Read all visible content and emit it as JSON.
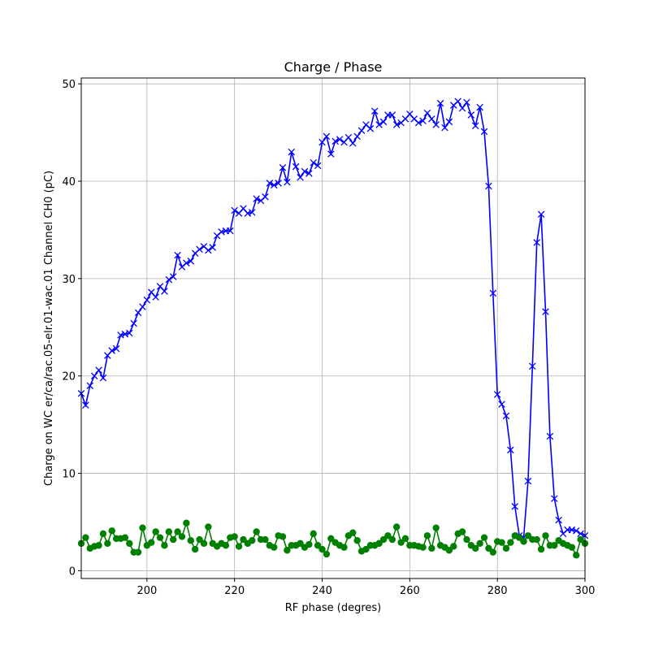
{
  "chart_data": {
    "type": "line",
    "title": "Charge / Phase",
    "x_label": "RF phase (degres)",
    "y_label": "Charge on WC er/ca/rac.05-elr.01-wac.01 Channel CH0 (pC)",
    "x": [
      185,
      186,
      187,
      188,
      189,
      190,
      191,
      192,
      193,
      194,
      195,
      196,
      197,
      198,
      199,
      200,
      201,
      202,
      203,
      204,
      205,
      206,
      207,
      208,
      209,
      210,
      211,
      212,
      213,
      214,
      215,
      216,
      217,
      218,
      219,
      220,
      221,
      222,
      223,
      224,
      225,
      226,
      227,
      228,
      229,
      230,
      231,
      232,
      233,
      234,
      235,
      236,
      237,
      238,
      239,
      240,
      241,
      242,
      243,
      244,
      245,
      246,
      247,
      248,
      249,
      250,
      251,
      252,
      253,
      254,
      255,
      256,
      257,
      258,
      259,
      260,
      261,
      262,
      263,
      264,
      265,
      266,
      267,
      268,
      269,
      270,
      271,
      272,
      273,
      274,
      275,
      276,
      277,
      278,
      279,
      280,
      281,
      282,
      283,
      284,
      285,
      286,
      287,
      288,
      289,
      290,
      291,
      292,
      293,
      294,
      295,
      296,
      297,
      298,
      299,
      300
    ],
    "series": [
      {
        "color": "#0000ff",
        "marker": "x",
        "values": [
          18.2,
          17.0,
          19.0,
          20.0,
          20.6,
          19.8,
          22.1,
          22.6,
          22.8,
          24.2,
          24.3,
          24.4,
          25.4,
          26.5,
          27.1,
          27.8,
          28.6,
          28.1,
          29.2,
          28.7,
          29.9,
          30.2,
          32.4,
          31.2,
          31.6,
          31.8,
          32.6,
          33.0,
          33.3,
          32.9,
          33.2,
          34.4,
          34.8,
          34.9,
          34.9,
          37.0,
          36.7,
          37.2,
          36.7,
          36.8,
          38.2,
          38.0,
          38.4,
          39.8,
          39.6,
          39.8,
          41.4,
          39.9,
          43.0,
          41.5,
          40.4,
          41.0,
          40.8,
          41.9,
          41.6,
          44.0,
          44.6,
          42.8,
          44.1,
          44.3,
          44.0,
          44.5,
          43.9,
          44.6,
          45.2,
          45.8,
          45.4,
          47.2,
          45.8,
          46.1,
          46.8,
          46.8,
          45.8,
          46.0,
          46.4,
          46.9,
          46.4,
          46.0,
          46.2,
          47.0,
          46.4,
          45.8,
          48.0,
          45.5,
          46.1,
          47.8,
          48.2,
          47.5,
          48.1,
          46.8,
          45.7,
          47.6,
          45.1,
          39.5,
          28.5,
          18.1,
          17.1,
          15.9,
          12.4,
          6.6,
          3.6,
          3.4,
          9.2,
          21.0,
          33.7,
          36.6,
          26.6,
          13.8,
          7.4,
          5.2,
          3.8,
          4.2,
          4.2,
          4.1,
          3.8,
          3.6
        ]
      },
      {
        "color": "#008000",
        "marker": "o",
        "values": [
          2.8,
          3.4,
          2.3,
          2.5,
          2.6,
          3.8,
          2.8,
          4.1,
          3.3,
          3.3,
          3.4,
          2.8,
          1.9,
          1.9,
          4.4,
          2.6,
          2.9,
          4.0,
          3.4,
          2.6,
          4.0,
          3.2,
          4.0,
          3.5,
          4.9,
          3.1,
          2.2,
          3.2,
          2.8,
          4.5,
          2.8,
          2.5,
          2.8,
          2.6,
          3.4,
          3.5,
          2.5,
          3.2,
          2.8,
          3.1,
          4.0,
          3.2,
          3.2,
          2.6,
          2.4,
          3.6,
          3.5,
          2.1,
          2.6,
          2.6,
          2.8,
          2.4,
          2.7,
          3.8,
          2.6,
          2.2,
          1.7,
          3.3,
          2.9,
          2.6,
          2.4,
          3.6,
          3.9,
          3.1,
          2.0,
          2.2,
          2.6,
          2.6,
          2.8,
          3.2,
          3.6,
          3.2,
          4.5,
          2.9,
          3.3,
          2.6,
          2.6,
          2.5,
          2.4,
          3.6,
          2.3,
          4.4,
          2.6,
          2.4,
          2.1,
          2.5,
          3.8,
          4.0,
          3.2,
          2.6,
          2.3,
          2.8,
          3.4,
          2.3,
          1.9,
          3.0,
          2.9,
          2.3,
          2.9,
          3.6,
          3.4,
          3.0,
          3.6,
          3.2,
          3.2,
          2.2,
          3.6,
          2.6,
          2.6,
          3.1,
          2.8,
          2.6,
          2.4,
          1.6,
          3.2,
          2.8
        ]
      }
    ],
    "xlim": [
      185,
      300
    ],
    "ylim": [
      -0.8,
      50.6
    ],
    "xticks": [
      200,
      220,
      240,
      260,
      280,
      300
    ],
    "yticks": [
      0,
      10,
      20,
      30,
      40,
      50
    ],
    "grid": true
  }
}
